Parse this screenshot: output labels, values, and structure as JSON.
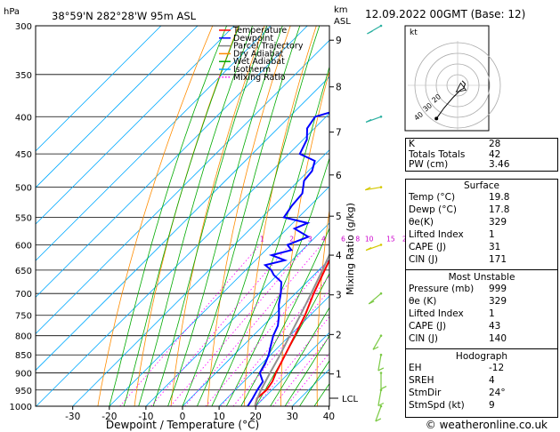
{
  "header": {
    "location": "38°59'N  282°28'W  95m  ASL",
    "datetime": "12.09.2022  00GMT  (Base: 12)",
    "units_hpa": "hPa",
    "units_km": "km",
    "units_asl": "ASL"
  },
  "footer": {
    "credit": "© weatheronline.co.uk"
  },
  "chart_data": {
    "type": "line",
    "subtype": "skew-T log-P diagram",
    "xlabel": "Dewpoint / Temperature (°C)",
    "ylabel": "Mixing Ratio (g/kg)",
    "pressure_axis": {
      "unit": "hPa",
      "scale": "log",
      "range": [
        1000,
        300
      ],
      "ticks": [
        1000,
        950,
        900,
        850,
        800,
        750,
        700,
        650,
        600,
        550,
        500,
        450,
        400,
        350,
        300
      ]
    },
    "temperature_axis": {
      "unit": "°C",
      "range": [
        -35,
        40
      ],
      "ticks": [
        -30,
        -20,
        -10,
        0,
        10,
        20,
        30,
        40
      ]
    },
    "height_axis": {
      "unit": "km ASL",
      "ticks": [
        {
          "label": "1",
          "p": 903
        },
        {
          "label": "2",
          "p": 797
        },
        {
          "label": "3",
          "p": 703
        },
        {
          "label": "4",
          "p": 620
        },
        {
          "label": "5",
          "p": 548
        },
        {
          "label": "6",
          "p": 481
        },
        {
          "label": "7",
          "p": 420
        },
        {
          "label": "8",
          "p": 364
        },
        {
          "label": "9",
          "p": 314
        }
      ],
      "lcl_label": "LCL",
      "lcl_p": 975
    },
    "mixing_ratio_labels": [
      "1",
      "2",
      "3",
      "4",
      "6",
      "8",
      "10",
      "15",
      "20",
      "25"
    ],
    "mixing_ratio_label_p": 595,
    "legend": [
      {
        "name": "Temperature",
        "color": "#ff0000"
      },
      {
        "name": "Dewpoint",
        "color": "#0000ff"
      },
      {
        "name": "Parcel Trajectory",
        "color": "#808080"
      },
      {
        "name": "Dry Adiabat",
        "color": "#ff8c00"
      },
      {
        "name": "Wet Adiabat",
        "color": "#00aa00"
      },
      {
        "name": "Isotherm",
        "color": "#00aaff"
      },
      {
        "name": "Mixing Ratio",
        "color": "#ff00ff"
      }
    ],
    "series": [
      {
        "name": "Temperature",
        "color": "#ff0000",
        "points": [
          {
            "p": 1000,
            "t": 19.8
          },
          {
            "p": 975,
            "t": 18.2
          },
          {
            "p": 950,
            "t": 18.5
          },
          {
            "p": 925,
            "t": 17.8
          },
          {
            "p": 900,
            "t": 16.4
          },
          {
            "p": 850,
            "t": 14.0
          },
          {
            "p": 800,
            "t": 11.4
          },
          {
            "p": 750,
            "t": 8.6
          },
          {
            "p": 700,
            "t": 5.0
          },
          {
            "p": 650,
            "t": 1.6
          },
          {
            "p": 600,
            "t": -2.0
          },
          {
            "p": 550,
            "t": -5.6
          },
          {
            "p": 500,
            "t": -10.0
          },
          {
            "p": 450,
            "t": -15.5
          },
          {
            "p": 400,
            "t": -21.5
          },
          {
            "p": 350,
            "t": -29.5
          },
          {
            "p": 300,
            "t": -37.5
          }
        ]
      },
      {
        "name": "Dewpoint",
        "color": "#0000ff",
        "points": [
          {
            "p": 1000,
            "t": 17.8
          },
          {
            "p": 975,
            "t": 17.0
          },
          {
            "p": 950,
            "t": 16.0
          },
          {
            "p": 925,
            "t": 15.2
          },
          {
            "p": 900,
            "t": 12.0
          },
          {
            "p": 875,
            "t": 11.0
          },
          {
            "p": 850,
            "t": 9.5
          },
          {
            "p": 825,
            "t": 7.5
          },
          {
            "p": 800,
            "t": 5.5
          },
          {
            "p": 775,
            "t": 4.0
          },
          {
            "p": 750,
            "t": 1.5
          },
          {
            "p": 725,
            "t": -1.5
          },
          {
            "p": 700,
            "t": -4.0
          },
          {
            "p": 675,
            "t": -7.0
          },
          {
            "p": 660,
            "t": -11.0
          },
          {
            "p": 650,
            "t": -13.0
          },
          {
            "p": 640,
            "t": -16.0
          },
          {
            "p": 630,
            "t": -12.0
          },
          {
            "p": 620,
            "t": -17.0
          },
          {
            "p": 610,
            "t": -13.0
          },
          {
            "p": 600,
            "t": -15.5
          },
          {
            "p": 585,
            "t": -12.0
          },
          {
            "p": 570,
            "t": -18.0
          },
          {
            "p": 560,
            "t": -16.0
          },
          {
            "p": 550,
            "t": -24.0
          },
          {
            "p": 530,
            "t": -25.0
          },
          {
            "p": 510,
            "t": -25.5
          },
          {
            "p": 490,
            "t": -28.5
          },
          {
            "p": 475,
            "t": -29.0
          },
          {
            "p": 460,
            "t": -31.0
          },
          {
            "p": 450,
            "t": -37.0
          },
          {
            "p": 430,
            "t": -39.0
          },
          {
            "p": 415,
            "t": -42.0
          },
          {
            "p": 400,
            "t": -43.0
          },
          {
            "p": 385,
            "t": -35.0
          },
          {
            "p": 375,
            "t": -37.0
          },
          {
            "p": 360,
            "t": -42.0
          },
          {
            "p": 345,
            "t": -45.0
          },
          {
            "p": 330,
            "t": -47.0
          },
          {
            "p": 300,
            "t": -52.0
          }
        ]
      },
      {
        "name": "Parcel Trajectory",
        "color": "#909090",
        "points": [
          {
            "p": 1000,
            "t": 19.8
          },
          {
            "p": 975,
            "t": 18.3
          },
          {
            "p": 950,
            "t": 17.0
          },
          {
            "p": 900,
            "t": 14.8
          },
          {
            "p": 850,
            "t": 12.6
          },
          {
            "p": 800,
            "t": 10.0
          },
          {
            "p": 750,
            "t": 7.3
          },
          {
            "p": 700,
            "t": 4.3
          },
          {
            "p": 650,
            "t": 1.0
          },
          {
            "p": 600,
            "t": -2.8
          },
          {
            "p": 550,
            "t": -7.2
          },
          {
            "p": 500,
            "t": -12.2
          },
          {
            "p": 450,
            "t": -18.0
          },
          {
            "p": 400,
            "t": -25.0
          },
          {
            "p": 350,
            "t": -33.0
          },
          {
            "p": 300,
            "t": -42.0
          }
        ]
      }
    ],
    "wind_barbs": [
      {
        "p": 1000,
        "dir": 200,
        "kt": 5
      },
      {
        "p": 950,
        "dir": 190,
        "kt": 5
      },
      {
        "p": 900,
        "dir": 180,
        "kt": 5
      },
      {
        "p": 850,
        "dir": 190,
        "kt": 5
      },
      {
        "p": 800,
        "dir": 210,
        "kt": 5
      },
      {
        "p": 700,
        "dir": 230,
        "kt": 5
      },
      {
        "p": 600,
        "dir": 250,
        "kt": 10
      },
      {
        "p": 500,
        "dir": 260,
        "kt": 10
      },
      {
        "p": 400,
        "dir": 250,
        "kt": 15
      },
      {
        "p": 300,
        "dir": 240,
        "kt": 15
      }
    ]
  },
  "hodograph": {
    "unit": "kt",
    "ring_labels": [
      "20",
      "30",
      "40"
    ],
    "points": [
      [
        3,
        3
      ],
      [
        5,
        1
      ],
      [
        4,
        -2
      ],
      [
        2,
        -3
      ],
      [
        1,
        -4
      ],
      [
        -3,
        -8
      ],
      [
        -9,
        -15
      ],
      [
        -14,
        -22
      ]
    ],
    "storm_motion": [
      2,
      -2
    ]
  },
  "indices": [
    {
      "label": "K",
      "value": "28"
    },
    {
      "label": "Totals Totals",
      "value": "42"
    },
    {
      "label": "PW (cm)",
      "value": "3.46"
    }
  ],
  "surface": {
    "title": "Surface",
    "rows": [
      {
        "label": "Temp (°C)",
        "value": "19.8"
      },
      {
        "label": "Dewp (°C)",
        "value": "17.8"
      },
      {
        "label": "θe(K)",
        "value": "329"
      },
      {
        "label": "Lifted Index",
        "value": "1"
      },
      {
        "label": "CAPE (J)",
        "value": "31"
      },
      {
        "label": "CIN (J)",
        "value": "171"
      }
    ]
  },
  "most_unstable": {
    "title": "Most Unstable",
    "rows": [
      {
        "label": "Pressure (mb)",
        "value": "999"
      },
      {
        "label": "θe (K)",
        "value": "329"
      },
      {
        "label": "Lifted Index",
        "value": "1"
      },
      {
        "label": "CAPE (J)",
        "value": "43"
      },
      {
        "label": "CIN (J)",
        "value": "140"
      }
    ]
  },
  "hodograph_table": {
    "title": "Hodograph",
    "rows": [
      {
        "label": "EH",
        "value": "-12"
      },
      {
        "label": "SREH",
        "value": "4"
      },
      {
        "label": "StmDir",
        "value": "24°"
      },
      {
        "label": "StmSpd (kt)",
        "value": "9"
      }
    ]
  }
}
